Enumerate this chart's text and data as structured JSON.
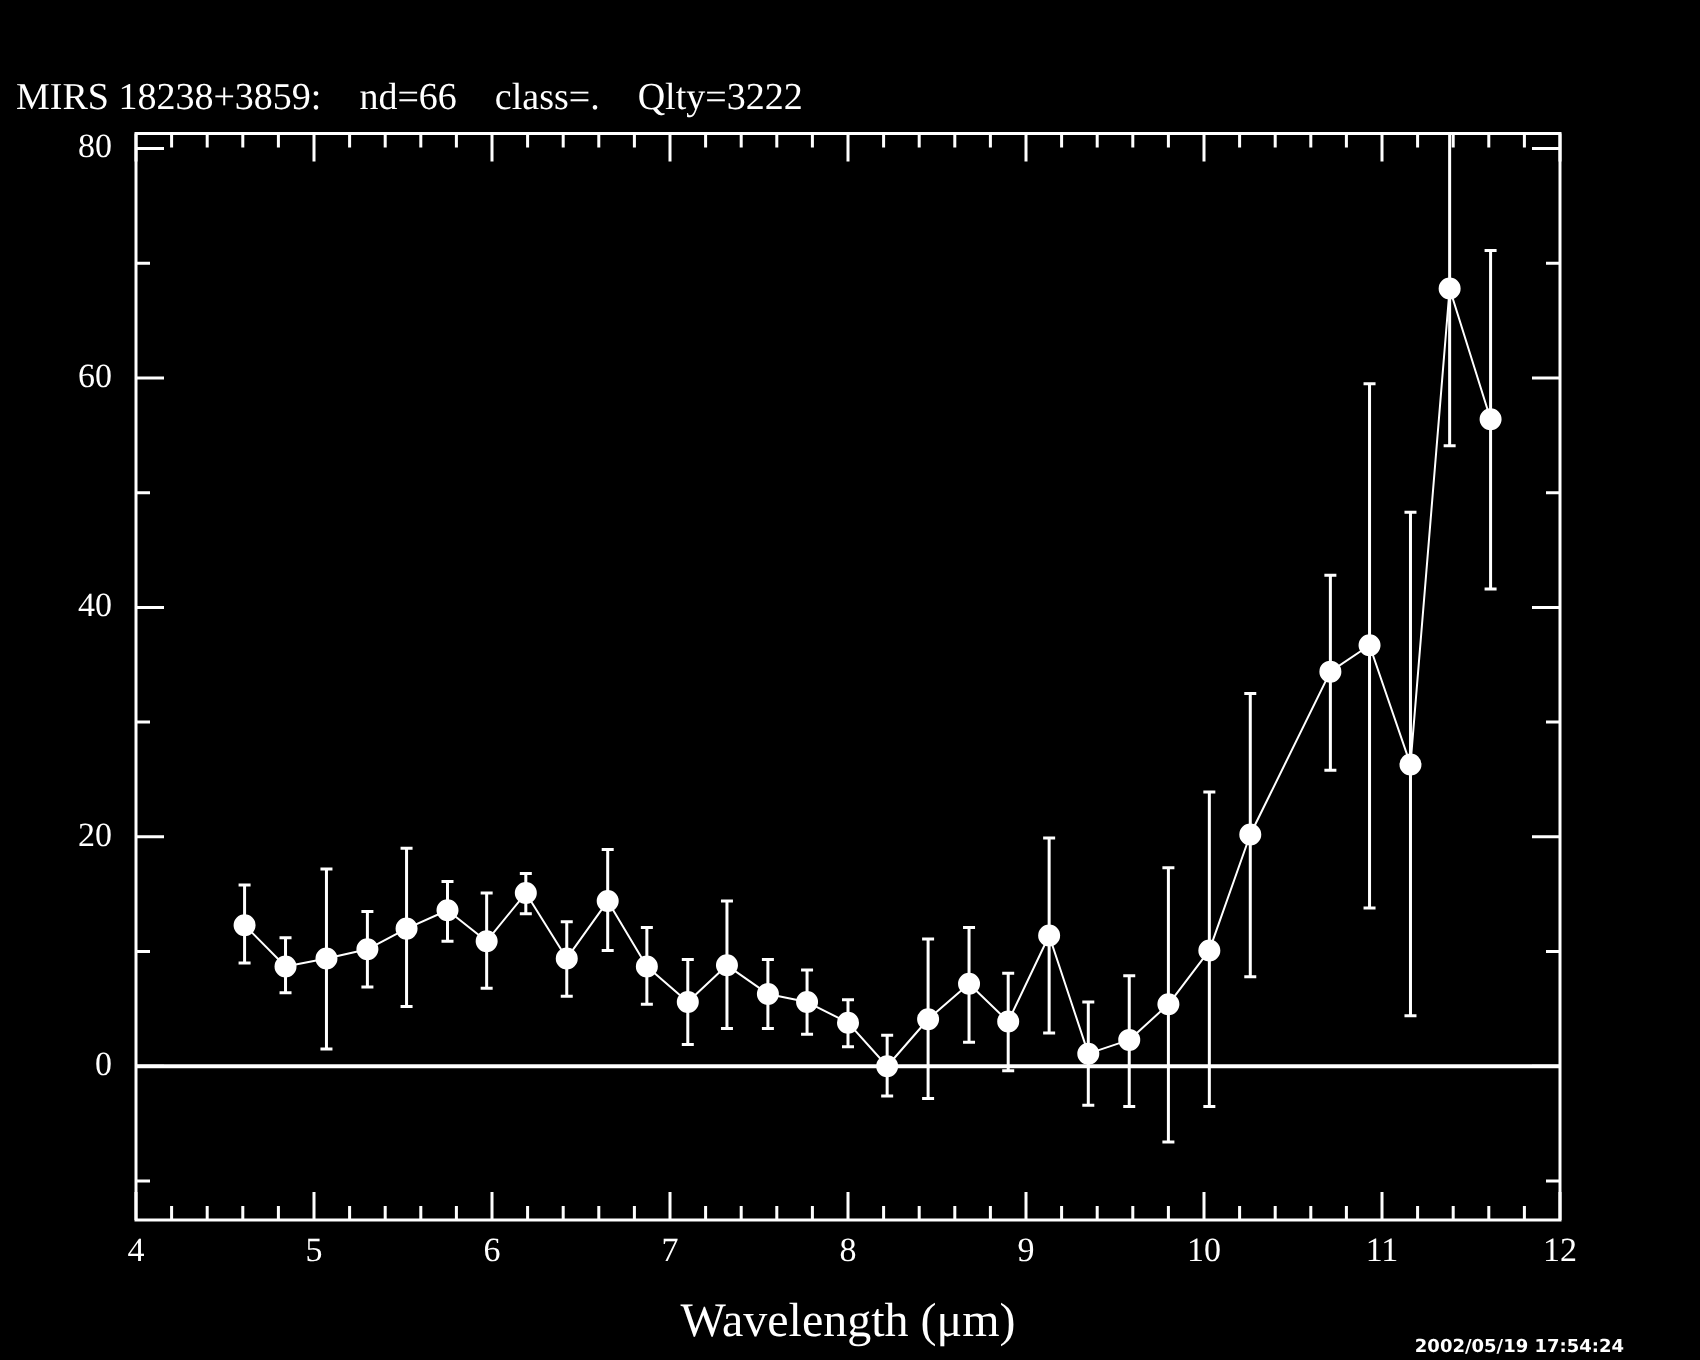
{
  "chart_data": {
    "type": "line",
    "title": "MIRS 18238+3859:    nd=66    class=.    Qlty=3222",
    "xlabel": "Wavelength (μm)",
    "x": [
      4.61,
      4.84,
      5.07,
      5.3,
      5.52,
      5.75,
      5.97,
      6.19,
      6.42,
      6.65,
      6.87,
      7.1,
      7.32,
      7.55,
      7.77,
      8.0,
      8.22,
      8.45,
      8.68,
      8.9,
      9.13,
      9.35,
      9.58,
      9.8,
      10.03,
      10.26,
      10.71,
      10.93,
      11.16,
      11.38,
      11.61
    ],
    "series": [
      {
        "color": "#ffffff",
        "values": [
          12.3,
          8.7,
          9.4,
          10.2,
          12.0,
          13.6,
          10.9,
          15.1,
          9.4,
          14.4,
          8.7,
          5.6,
          8.8,
          6.3,
          5.6,
          3.8,
          0.0,
          4.1,
          7.2,
          3.9,
          11.4,
          1.1,
          2.3,
          5.4,
          10.1,
          20.2,
          34.4,
          36.7,
          26.3,
          67.8,
          56.4
        ],
        "errors": [
          [
            9.0,
            15.8
          ],
          [
            6.4,
            11.2
          ],
          [
            1.5,
            17.2
          ],
          [
            6.9,
            13.5
          ],
          [
            5.2,
            19.0
          ],
          [
            10.9,
            16.1
          ],
          [
            6.8,
            15.1
          ],
          [
            13.3,
            16.8
          ],
          [
            6.1,
            12.6
          ],
          [
            10.1,
            18.9
          ],
          [
            5.4,
            12.1
          ],
          [
            1.9,
            9.3
          ],
          [
            3.3,
            14.4
          ],
          [
            3.3,
            9.3
          ],
          [
            2.8,
            8.4
          ],
          [
            1.7,
            5.8
          ],
          [
            -2.6,
            2.7
          ],
          [
            -2.8,
            11.1
          ],
          [
            2.1,
            12.1
          ],
          [
            -0.4,
            8.1
          ],
          [
            2.9,
            19.9
          ],
          [
            -3.4,
            5.6
          ],
          [
            -3.5,
            7.9
          ],
          [
            -6.6,
            17.3
          ],
          [
            -3.5,
            23.9
          ],
          [
            7.8,
            32.5
          ],
          [
            25.8,
            42.8
          ],
          [
            13.8,
            59.5
          ],
          [
            4.4,
            48.3
          ],
          [
            54.1,
            81.3
          ],
          [
            41.6,
            71.1
          ]
        ]
      }
    ],
    "xlim": [
      4,
      12
    ],
    "ylim": [
      -13.4,
      81.3
    ],
    "xticks": [
      4,
      {
        "value": 4.2,
        "label": null
      },
      {
        "value": 4.4,
        "label": null
      },
      {
        "value": 4.6,
        "label": null
      },
      {
        "value": 4.8,
        "label": null
      },
      5,
      {
        "value": 5.2,
        "label": null
      },
      {
        "value": 5.4,
        "label": null
      },
      {
        "value": 5.6,
        "label": null
      },
      {
        "value": 5.8,
        "label": null
      },
      6,
      {
        "value": 6.2,
        "label": null
      },
      {
        "value": 6.4,
        "label": null
      },
      {
        "value": 6.6,
        "label": null
      },
      {
        "value": 6.8,
        "label": null
      },
      7,
      {
        "value": 7.2,
        "label": null
      },
      {
        "value": 7.4,
        "label": null
      },
      {
        "value": 7.6,
        "label": null
      },
      {
        "value": 7.8,
        "label": null
      },
      8,
      {
        "value": 8.2,
        "label": null
      },
      {
        "value": 8.4,
        "label": null
      },
      {
        "value": 8.6,
        "label": null
      },
      {
        "value": 8.8,
        "label": null
      },
      9,
      {
        "value": 9.2,
        "label": null
      },
      {
        "value": 9.4,
        "label": null
      },
      {
        "value": 9.6,
        "label": null
      },
      {
        "value": 9.8,
        "label": null
      },
      10,
      {
        "value": 10.2,
        "label": null
      },
      {
        "value": 10.4,
        "label": null
      },
      {
        "value": 10.6,
        "label": null
      },
      {
        "value": 10.8,
        "label": null
      },
      11,
      {
        "value": 11.2,
        "label": null
      },
      {
        "value": 11.4,
        "label": null
      },
      {
        "value": 11.6,
        "label": null
      },
      {
        "value": 11.8,
        "label": null
      },
      12
    ],
    "yticks": [
      {
        "value": -10,
        "label": null
      },
      0,
      {
        "value": 10,
        "label": null
      },
      20,
      {
        "value": 30,
        "label": null
      },
      40,
      {
        "value": 50,
        "label": null
      },
      60,
      {
        "value": 70,
        "label": null
      },
      80
    ],
    "ref_lines": [
      {
        "axis": "y",
        "value": 0,
        "color": "#ffffff"
      }
    ],
    "marker": "circle",
    "line_style": "solid",
    "grid": false,
    "legend": false,
    "annotations": [
      "2002/05/19 17:54:24"
    ]
  }
}
